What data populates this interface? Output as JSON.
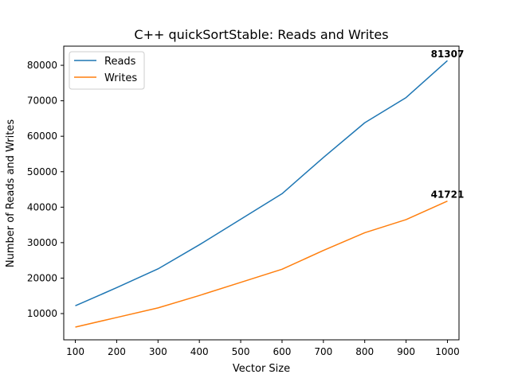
{
  "chart_data": {
    "type": "line",
    "title": "C++ quickSortStable: Reads and Writes",
    "xlabel": "Vector Size",
    "ylabel": "Number of Reads and Writes",
    "x": [
      100,
      200,
      300,
      400,
      500,
      600,
      700,
      800,
      900,
      1000
    ],
    "xticks": [
      "100",
      "200",
      "300",
      "400",
      "500",
      "600",
      "700",
      "800",
      "900",
      "1000"
    ],
    "yticks": [
      "10000",
      "20000",
      "30000",
      "40000",
      "50000",
      "60000",
      "70000",
      "80000"
    ],
    "xlim": [
      72,
      1028
    ],
    "ylim": [
      2600,
      85400
    ],
    "grid": false,
    "legend_position": "upper-left",
    "series": [
      {
        "name": "Reads",
        "color": "#1f77b4",
        "values": [
          12200,
          17300,
          22600,
          29400,
          36600,
          43800,
          54000,
          63800,
          70900,
          81307
        ]
      },
      {
        "name": "Writes",
        "color": "#ff7f0e",
        "values": [
          6200,
          8900,
          11600,
          15100,
          18800,
          22500,
          27800,
          32800,
          36500,
          41721
        ]
      }
    ],
    "annotations": [
      {
        "text": "81307",
        "series": 0,
        "x": 1000
      },
      {
        "text": "41721",
        "series": 1,
        "x": 1000
      }
    ]
  }
}
